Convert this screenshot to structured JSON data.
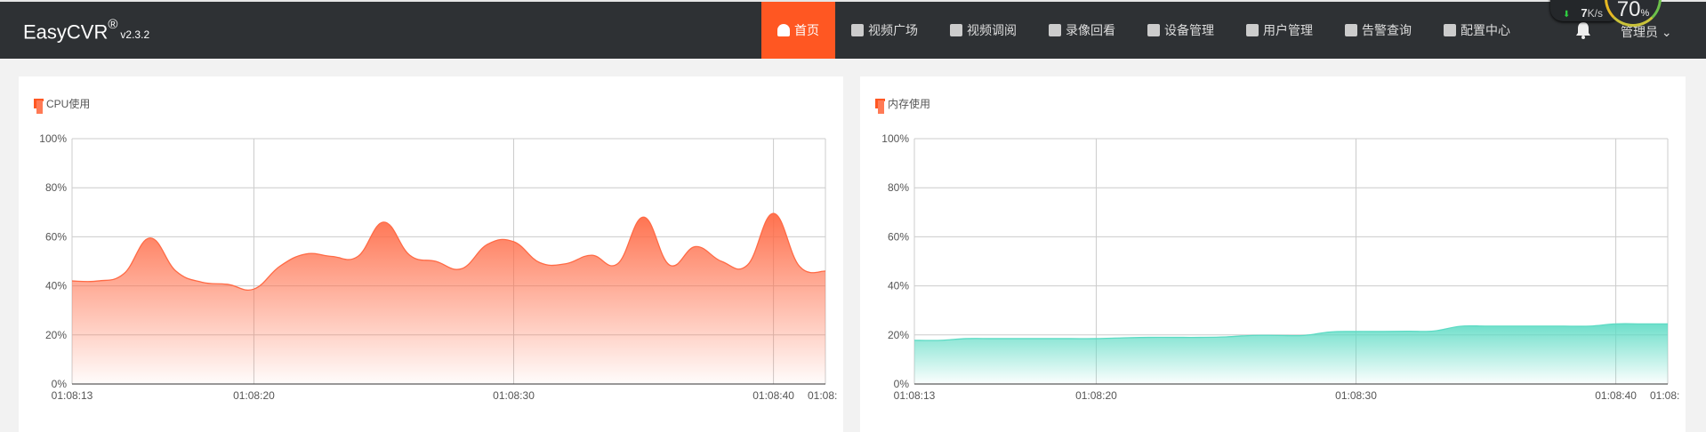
{
  "header": {
    "brand": "EasyCVR",
    "reg": "®",
    "version": "v2.3.2",
    "nav": [
      {
        "label": "首页",
        "icon": "dashboard-icon",
        "active": true
      },
      {
        "label": "视频广场",
        "icon": "play-circle-icon"
      },
      {
        "label": "视频调阅",
        "icon": "layout-icon"
      },
      {
        "label": "录像回看",
        "icon": "video-camera-icon"
      },
      {
        "label": "设备管理",
        "icon": "device-icon"
      },
      {
        "label": "用户管理",
        "icon": "user-icon"
      },
      {
        "label": "告警查询",
        "icon": "alarm-icon"
      },
      {
        "label": "配置中心",
        "icon": "gear-icon"
      }
    ],
    "user": "管理员",
    "user_caret": "⌄"
  },
  "widget": {
    "speed": "7",
    "speed_unit": "K/s",
    "gauge_value": "70",
    "gauge_unit": "%"
  },
  "colors": {
    "accent": "#ff5722",
    "cpu": "#ff6a45",
    "memory": "#5ddbc4",
    "header_bg": "#2e3134"
  },
  "chart_data": [
    {
      "type": "area",
      "title": "CPU使用",
      "yticks": [
        "0%",
        "20%",
        "40%",
        "60%",
        "80%",
        "100%"
      ],
      "ylim": [
        0,
        100
      ],
      "xticks": [
        "01:08:13",
        "01:08:20",
        "01:08:30",
        "01:08:40",
        "01:08:"
      ],
      "x": [
        "01:08:13",
        "01:08:14",
        "01:08:15",
        "01:08:16",
        "01:08:17",
        "01:08:18",
        "01:08:19",
        "01:08:20",
        "01:08:21",
        "01:08:22",
        "01:08:23",
        "01:08:24",
        "01:08:25",
        "01:08:26",
        "01:08:27",
        "01:08:28",
        "01:08:29",
        "01:08:30",
        "01:08:31",
        "01:08:32",
        "01:08:33",
        "01:08:34",
        "01:08:35",
        "01:08:36",
        "01:08:37",
        "01:08:38",
        "01:08:39",
        "01:08:40",
        "01:08:41",
        "01:08:42"
      ],
      "values": [
        42,
        42,
        45,
        59.5,
        46,
        41.5,
        40.6,
        38.7,
        48,
        53,
        52,
        52,
        66,
        52.5,
        50,
        47,
        57,
        58,
        49.5,
        49,
        52.5,
        49,
        68,
        48.5,
        56,
        50,
        48.5,
        69.5,
        48,
        46
      ],
      "grid": true
    },
    {
      "type": "area",
      "title": "内存使用",
      "yticks": [
        "0%",
        "20%",
        "40%",
        "60%",
        "80%",
        "100%"
      ],
      "ylim": [
        0,
        100
      ],
      "xticks": [
        "01:08:13",
        "01:08:20",
        "01:08:30",
        "01:08:40",
        "01:08:"
      ],
      "x": [
        "01:08:13",
        "01:08:14",
        "01:08:15",
        "01:08:16",
        "01:08:17",
        "01:08:18",
        "01:08:19",
        "01:08:20",
        "01:08:21",
        "01:08:22",
        "01:08:23",
        "01:08:24",
        "01:08:25",
        "01:08:26",
        "01:08:27",
        "01:08:28",
        "01:08:29",
        "01:08:30",
        "01:08:31",
        "01:08:32",
        "01:08:33",
        "01:08:34",
        "01:08:35",
        "01:08:36",
        "01:08:37",
        "01:08:38",
        "01:08:39",
        "01:08:40",
        "01:08:41",
        "01:08:42"
      ],
      "values": [
        17.8,
        17.8,
        18.5,
        18.5,
        18.5,
        18.5,
        18.5,
        18.5,
        18.8,
        19,
        19,
        19,
        19.2,
        19.8,
        19.8,
        19.8,
        21.2,
        21.4,
        21.4,
        21.5,
        21.6,
        23.5,
        23.6,
        23.6,
        23.6,
        23.6,
        23.6,
        24.5,
        24.5,
        24.5
      ],
      "grid": true
    }
  ]
}
